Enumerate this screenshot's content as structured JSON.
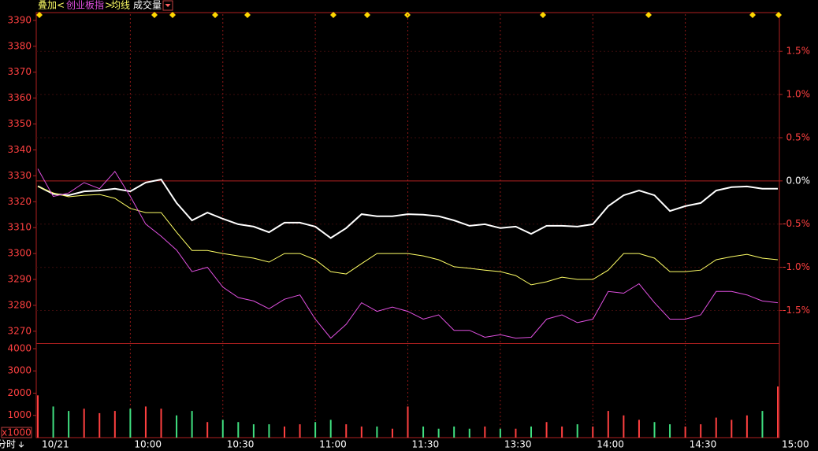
{
  "chart_data": [
    {
      "type": "line",
      "header": {
        "prefix": "叠加<",
        "suffix": ">"
      },
      "x": [
        0,
        5,
        10,
        15,
        20,
        25,
        30,
        35,
        40,
        45,
        50,
        55,
        60,
        65,
        70,
        75,
        80,
        85,
        90,
        95,
        100,
        105,
        110,
        115,
        120,
        125,
        130,
        135,
        140,
        145,
        150,
        155,
        160,
        165,
        170,
        175,
        180,
        185,
        190,
        195,
        200,
        205,
        210,
        215,
        220,
        225,
        230,
        235,
        240
      ],
      "xlim": [
        0,
        240
      ],
      "xticks": [
        {
          "value": 0,
          "label": "10/21"
        },
        {
          "value": 30,
          "label": "10:00"
        },
        {
          "value": 60,
          "label": "10:30"
        },
        {
          "value": 90,
          "label": "11:00"
        },
        {
          "value": 120,
          "label": "11:30"
        },
        {
          "value": 150,
          "label": "13:30"
        },
        {
          "value": 180,
          "label": "14:00"
        },
        {
          "value": 210,
          "label": "14:30"
        },
        {
          "value": 240,
          "label": "15:00"
        }
      ],
      "ylim": [
        3266,
        3392.4
      ],
      "yticks": [
        3270,
        3280,
        3290,
        3300,
        3310,
        3320,
        3330,
        3340,
        3350,
        3360,
        3370,
        3380,
        3390
      ],
      "y2lim": [
        -1.86,
        1.93
      ],
      "y2ticks": [
        {
          "value": -1.5,
          "label": "-1.5%"
        },
        {
          "value": -1.0,
          "label": "-1.0%"
        },
        {
          "value": -0.5,
          "label": "-0.5%"
        },
        {
          "value": 0,
          "label": "0.0%"
        },
        {
          "value": 0.5,
          "label": "0.5%"
        },
        {
          "value": 1.0,
          "label": "1.0%"
        },
        {
          "value": 1.5,
          "label": "1.5%"
        }
      ],
      "grid": true,
      "series": [
        {
          "color": "#ffffff",
          "values": [
            3326,
            3323,
            3322.5,
            3324,
            3324.3,
            3325,
            3324,
            3327.4,
            3328.6,
            3319.5,
            3312.8,
            3315.8,
            3313.4,
            3311.3,
            3310.4,
            3308.2,
            3311.9,
            3311.9,
            3310.4,
            3306,
            3309.8,
            3315.2,
            3314.4,
            3314.4,
            3315.2,
            3315,
            3314.4,
            3312.8,
            3310.7,
            3311.3,
            3309.8,
            3310.4,
            3307.6,
            3310.7,
            3310.7,
            3310.4,
            3311.3,
            3318.3,
            3322.5,
            3324.3,
            3322.5,
            3316.4,
            3318.3,
            3319.5,
            3324.3,
            3325.6,
            3325.9,
            3325,
            3325
          ]
        },
        {
          "name": "均线",
          "color": "#ffff66",
          "values": [
            3325.9,
            3323.4,
            3321.9,
            3322.5,
            3322.8,
            3321.3,
            3317.4,
            3315.8,
            3315.8,
            3308.2,
            3301.2,
            3301.2,
            3300,
            3299.1,
            3298.2,
            3296.7,
            3300,
            3300,
            3297.6,
            3293,
            3292.1,
            3296.1,
            3300,
            3300,
            3300,
            3299.1,
            3297.6,
            3294.9,
            3294.3,
            3293.6,
            3293,
            3291.5,
            3287.9,
            3289.1,
            3290.9,
            3290,
            3290,
            3293.6,
            3300,
            3300,
            3298.2,
            3293,
            3293,
            3293.6,
            3297.6,
            3298.8,
            3299.7,
            3298.2,
            3297.6
          ]
        },
        {
          "name": "创业板指",
          "color": "#e050e0",
          "axis": "y2",
          "values": [
            0.14,
            -0.18,
            -0.14,
            -0.02,
            -0.09,
            0.11,
            -0.18,
            -0.5,
            -0.64,
            -0.8,
            -1.05,
            -1.0,
            -1.23,
            -1.35,
            -1.39,
            -1.48,
            -1.37,
            -1.32,
            -1.6,
            -1.82,
            -1.66,
            -1.41,
            -1.51,
            -1.46,
            -1.51,
            -1.6,
            -1.55,
            -1.73,
            -1.73,
            -1.81,
            -1.78,
            -1.82,
            -1.81,
            -1.6,
            -1.55,
            -1.64,
            -1.6,
            -1.28,
            -1.3,
            -1.19,
            -1.41,
            -1.6,
            -1.6,
            -1.55,
            -1.28,
            -1.28,
            -1.32,
            -1.39,
            -1.41
          ]
        }
      ]
    },
    {
      "type": "bar",
      "title": "成交量",
      "unit": "x1000",
      "corner_label": "分时",
      "ylim": [
        0,
        4212
      ],
      "yticks": [
        1000,
        2000,
        3000,
        4000
      ],
      "up_color": "#ff4040",
      "down_color": "#40e080",
      "values": [
        1900,
        1400,
        1200,
        1300,
        1100,
        1200,
        1300,
        1400,
        1300,
        1000,
        1200,
        700,
        800,
        700,
        600,
        600,
        500,
        600,
        700,
        800,
        600,
        500,
        500,
        400,
        1400,
        500,
        400,
        500,
        400,
        500,
        400,
        400,
        500,
        700,
        500,
        600,
        500,
        1200,
        1000,
        800,
        700,
        600,
        500,
        600,
        900,
        800,
        1000,
        1200,
        2300
      ]
    }
  ]
}
